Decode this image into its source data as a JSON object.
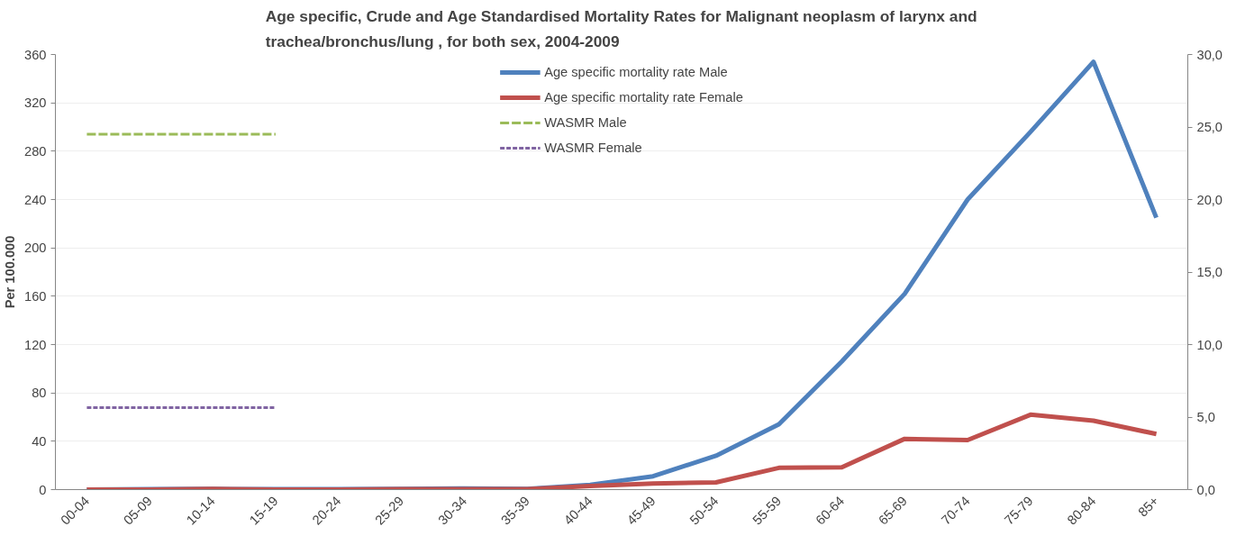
{
  "chart_data": {
    "type": "line",
    "title": "Age specific, Crude and Age Standardised Mortality Rates for Malignant neoplasm of larynx and\ntrachea/bronchus/lung , for both sex, 2004-2009",
    "ylabel": "Per 100.000",
    "categories": [
      "00-04",
      "05-09",
      "10-14",
      "15-19",
      "20-24",
      "25-29",
      "30-34",
      "35-39",
      "40-44",
      "45-49",
      "50-54",
      "55-59",
      "60-64",
      "65-69",
      "70-74",
      "75-79",
      "80-84",
      "85+"
    ],
    "series": [
      {
        "name": "Age specific mortality rate Male",
        "color": "#4f81bd",
        "line_style": "solid",
        "values": [
          0,
          0.3,
          0.5,
          0.3,
          0.3,
          0.6,
          1,
          0.6,
          4,
          11,
          28,
          54,
          106,
          162,
          240,
          296,
          354,
          225
        ]
      },
      {
        "name": "Age specific mortality rate Female",
        "color": "#c0504d",
        "line_style": "solid",
        "values": [
          0,
          0,
          0.5,
          0,
          0,
          0.3,
          0.3,
          0.3,
          3,
          5,
          6,
          18,
          18.5,
          42,
          41,
          62,
          57,
          46
        ]
      },
      {
        "name": "WASMR Male",
        "color": "#9bbb59",
        "line_style": "dashed",
        "axis": "y2",
        "values": [
          24.5,
          24.5,
          24.5,
          24.5,
          null,
          null,
          null,
          null,
          null,
          null,
          null,
          null,
          null,
          null,
          null,
          null,
          null,
          null
        ]
      },
      {
        "name": "WASMR Female",
        "color": "#8064a2",
        "line_style": "dotted",
        "axis": "y2",
        "values": [
          5.65,
          5.65,
          5.65,
          5.65,
          null,
          null,
          null,
          null,
          null,
          null,
          null,
          null,
          null,
          null,
          null,
          null,
          null,
          null
        ]
      }
    ],
    "ylim": [
      0,
      360
    ],
    "yticks": [
      0,
      40,
      80,
      120,
      160,
      200,
      240,
      280,
      320,
      360
    ],
    "y2lim": [
      0,
      30
    ],
    "y2ticks": [
      {
        "value": 0,
        "label": "0,0"
      },
      {
        "value": 5,
        "label": "5,0"
      },
      {
        "value": 10,
        "label": "10,0"
      },
      {
        "value": 15,
        "label": "15,0"
      },
      {
        "value": 20,
        "label": "20,0"
      },
      {
        "value": 25,
        "label": "25,0"
      },
      {
        "value": 30,
        "label": "30,0"
      }
    ],
    "grid": "y",
    "legend": "top",
    "marker": "none"
  }
}
